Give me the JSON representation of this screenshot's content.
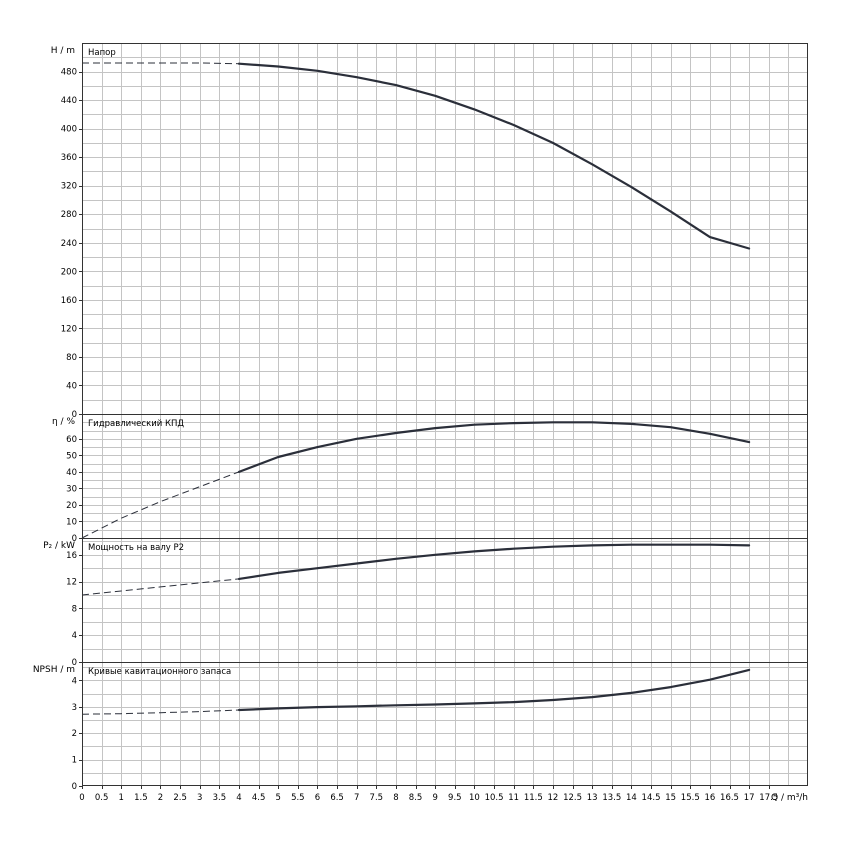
{
  "x_axis": {
    "label": "Q / m³/h",
    "ticks": [
      "0",
      "0.5",
      "1",
      "1.5",
      "2",
      "2.5",
      "3",
      "3.5",
      "4",
      "4.5",
      "5",
      "5.5",
      "6",
      "6.5",
      "7",
      "7.5",
      "8",
      "8.5",
      "9",
      "9.5",
      "10",
      "10.5",
      "11",
      "11.5",
      "12",
      "12.5",
      "13",
      "13.5",
      "14",
      "14.5",
      "15",
      "15.5",
      "16",
      "16.5",
      "17",
      "17.5"
    ],
    "range": [
      0,
      18.5
    ]
  },
  "colors": {
    "curve": "#2b2f3a",
    "grid": "#c4c4c4",
    "frame": "#333333"
  },
  "chart_data": [
    {
      "type": "line",
      "title": "Напор",
      "ylabel": "H / m",
      "ylim": [
        0,
        520
      ],
      "yticks": [
        0,
        40,
        80,
        120,
        160,
        200,
        240,
        280,
        320,
        360,
        400,
        440,
        480
      ],
      "dashed_until_x": 4,
      "series": [
        {
          "x": [
            0,
            1,
            2,
            3,
            4,
            5,
            6,
            7,
            8,
            9,
            10,
            11,
            12,
            13,
            14,
            15,
            16,
            17
          ],
          "values": [
            492,
            492,
            492,
            492,
            491,
            487,
            481,
            472,
            461,
            446,
            427,
            405,
            380,
            350,
            318,
            284,
            248,
            232
          ]
        }
      ]
    },
    {
      "type": "line",
      "title": "Гидравлический КПД",
      "ylabel": "η / %",
      "ylim": [
        0,
        75
      ],
      "yticks": [
        0,
        10,
        20,
        30,
        40,
        50,
        60
      ],
      "dashed_until_x": 4,
      "series": [
        {
          "x": [
            0,
            1,
            2,
            3,
            4,
            5,
            6,
            7,
            8,
            9,
            10,
            11,
            12,
            13,
            14,
            15,
            16,
            17
          ],
          "values": [
            0,
            12,
            22,
            31,
            40,
            49,
            55,
            60,
            63.5,
            66.5,
            68.5,
            69.5,
            70,
            70,
            69,
            67,
            63,
            58
          ]
        }
      ]
    },
    {
      "type": "line",
      "title": "Мощность на валу P2",
      "ylabel": "P₂ / kW",
      "ylim": [
        0,
        18.5
      ],
      "yticks": [
        0,
        4,
        8,
        12,
        16
      ],
      "dashed_until_x": 4,
      "series": [
        {
          "x": [
            0,
            1,
            2,
            3,
            4,
            5,
            6,
            7,
            8,
            9,
            10,
            11,
            12,
            13,
            14,
            15,
            16,
            17
          ],
          "values": [
            10,
            10.6,
            11.2,
            11.8,
            12.4,
            13.3,
            14,
            14.7,
            15.4,
            16,
            16.5,
            16.9,
            17.2,
            17.4,
            17.5,
            17.5,
            17.5,
            17.4
          ]
        }
      ]
    },
    {
      "type": "line",
      "title": "Кривые кавитационного запаса",
      "ylabel": "NPSH / m",
      "ylim": [
        0,
        4.7
      ],
      "yticks": [
        0,
        1,
        2,
        3,
        4
      ],
      "dashed_until_x": 4,
      "series": [
        {
          "x": [
            0,
            1,
            2,
            3,
            4,
            5,
            6,
            7,
            8,
            9,
            10,
            11,
            12,
            13,
            14,
            15,
            16,
            17
          ],
          "values": [
            2.72,
            2.74,
            2.78,
            2.82,
            2.88,
            2.94,
            2.99,
            3.02,
            3.06,
            3.09,
            3.13,
            3.18,
            3.26,
            3.37,
            3.53,
            3.75,
            4.03,
            4.4
          ]
        }
      ]
    }
  ]
}
